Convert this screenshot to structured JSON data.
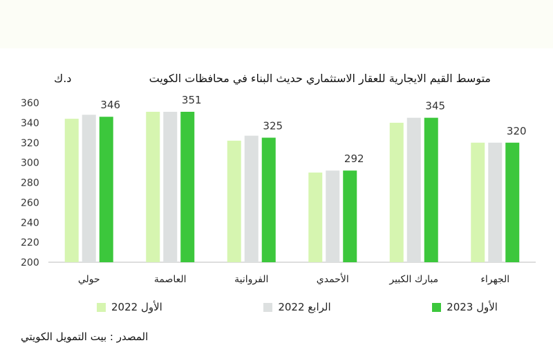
{
  "chart_data": {
    "type": "bar",
    "title": "متوسط القيم الايجارية للعقار الاستثماري حديث البناء في محافظات الكويت",
    "unit": "د.ك",
    "categories": [
      "حولي",
      "العاصمة",
      "الفروانية",
      "الأحمدي",
      "مبارك الكبير",
      "الجهراء"
    ],
    "series": [
      {
        "name": "الأول 2022",
        "color": "#d6f5b0",
        "values": [
          344,
          351,
          322,
          290,
          340,
          320
        ]
      },
      {
        "name": "الرابع 2022",
        "color": "#dde0e0",
        "values": [
          348,
          351,
          327,
          292,
          345,
          320
        ]
      },
      {
        "name": "الأول 2023",
        "color": "#3cc73c",
        "values": [
          346,
          351,
          325,
          292,
          345,
          320
        ]
      }
    ],
    "data_labels": [
      346,
      351,
      325,
      292,
      345,
      320
    ],
    "ylim": [
      200,
      360
    ],
    "yticks": [
      200,
      220,
      240,
      260,
      280,
      300,
      320,
      340,
      360
    ],
    "grid": false,
    "legend_position": "bottom"
  },
  "source_note": "المصدر : بيت التمويل الكويتي"
}
